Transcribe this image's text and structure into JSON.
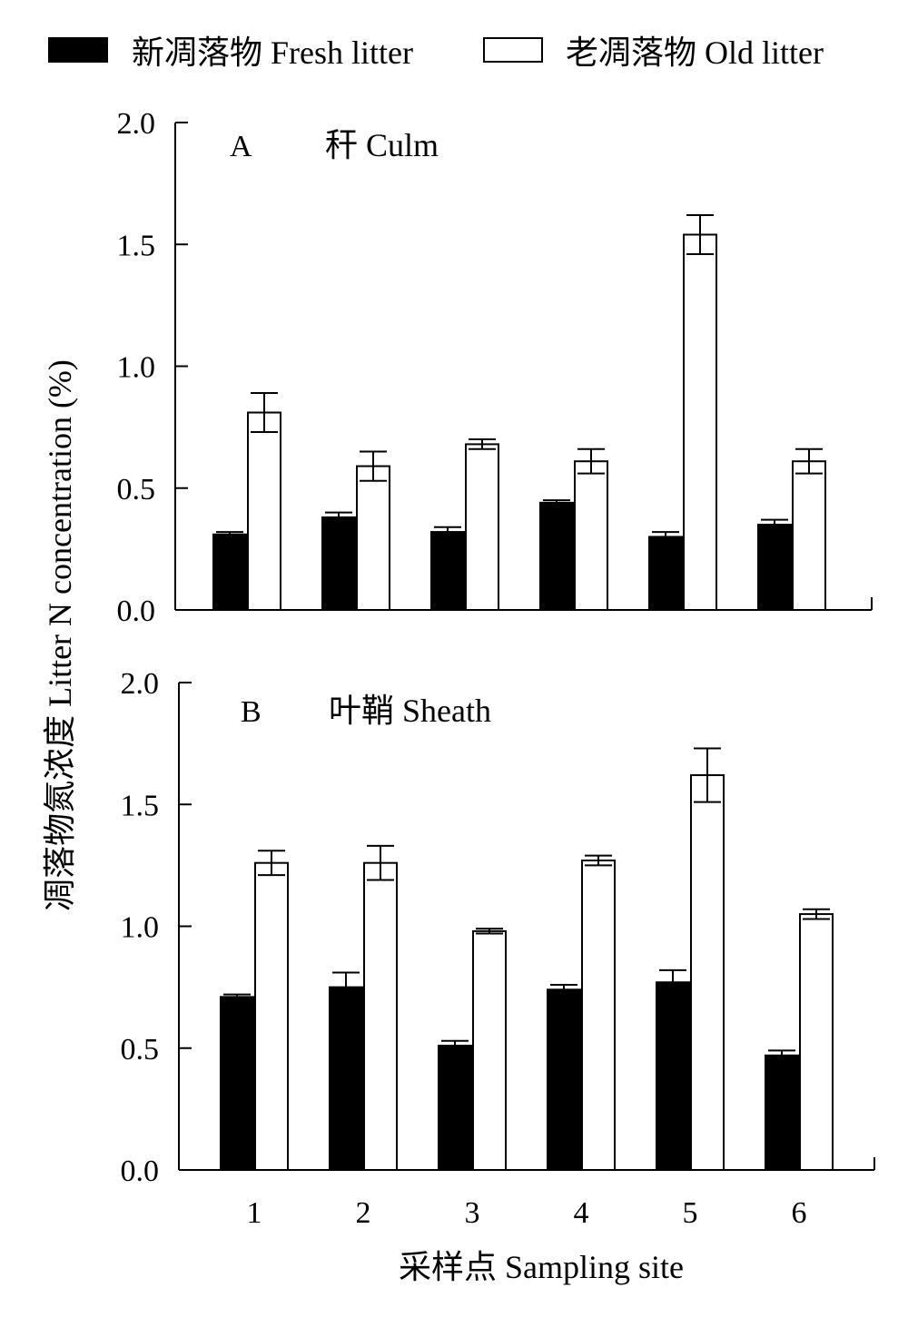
{
  "legend": {
    "fresh_label": "新凋落物 Fresh litter",
    "old_label": "老凋落物 Old litter"
  },
  "ylabel": "凋落物氮浓度  Litter N concentration (%)",
  "xlabel": "采样点 Sampling site",
  "colors": {
    "fresh": "#000000",
    "old": "#ffffff",
    "axis": "#000000"
  },
  "chart_data": [
    {
      "type": "bar",
      "panel": "A",
      "title": "秆 Culm",
      "categories": [
        "1",
        "2",
        "3",
        "4",
        "5",
        "6"
      ],
      "series": [
        {
          "name": "新凋落物 Fresh litter",
          "values": [
            0.31,
            0.38,
            0.32,
            0.44,
            0.3,
            0.35
          ],
          "errors": [
            0.01,
            0.02,
            0.02,
            0.01,
            0.02,
            0.02
          ]
        },
        {
          "name": "老凋落物 Old litter",
          "values": [
            0.81,
            0.59,
            0.68,
            0.61,
            1.54,
            0.61
          ],
          "errors": [
            0.08,
            0.06,
            0.02,
            0.05,
            0.08,
            0.05
          ]
        }
      ],
      "ylim": [
        0,
        2.0
      ],
      "yticks": [
        "0.0",
        "0.5",
        "1.0",
        "1.5",
        "2.0"
      ],
      "show_xtick_labels": false
    },
    {
      "type": "bar",
      "panel": "B",
      "title": "叶鞘 Sheath",
      "categories": [
        "1",
        "2",
        "3",
        "4",
        "5",
        "6"
      ],
      "series": [
        {
          "name": "新凋落物 Fresh litter",
          "values": [
            0.71,
            0.75,
            0.51,
            0.74,
            0.77,
            0.47
          ],
          "errors": [
            0.01,
            0.06,
            0.02,
            0.02,
            0.05,
            0.02
          ]
        },
        {
          "name": "老凋落物 Old litter",
          "values": [
            1.26,
            1.26,
            0.98,
            1.27,
            1.62,
            1.05
          ],
          "errors": [
            0.05,
            0.07,
            0.01,
            0.02,
            0.11,
            0.02
          ]
        }
      ],
      "ylim": [
        0,
        2.0
      ],
      "yticks": [
        "0.0",
        "0.5",
        "1.0",
        "1.5",
        "2.0"
      ],
      "show_xtick_labels": true
    }
  ]
}
